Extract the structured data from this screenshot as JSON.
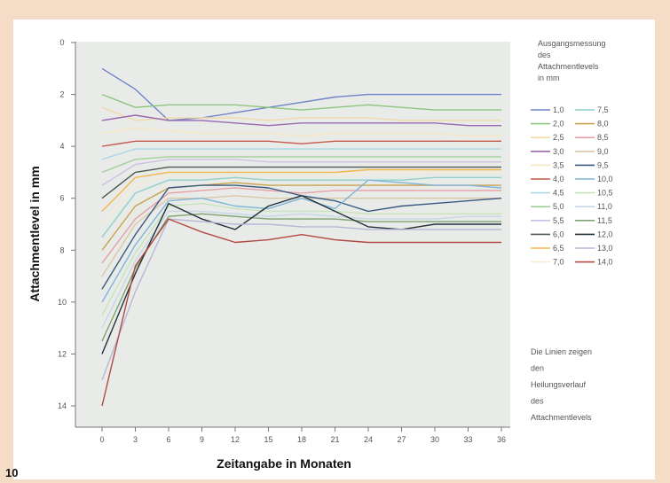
{
  "figure_number": "10",
  "chart_data": {
    "type": "line",
    "xlabel": "Zeitangabe in Monaten",
    "ylabel": "Attachmentlevel in mm",
    "x": [
      0,
      3,
      6,
      9,
      12,
      15,
      18,
      21,
      24,
      27,
      30,
      33,
      36
    ],
    "x_tick_labels": [
      "0",
      "3",
      "6",
      "9",
      "12",
      "15",
      "18",
      "21",
      "24",
      "27",
      "30",
      "33",
      "36"
    ],
    "ylim": [
      0,
      14.3
    ],
    "y_inverted": true,
    "y_ticks": [
      0,
      2,
      4,
      6,
      8,
      10,
      12,
      14
    ],
    "y_tick_labels": [
      "0",
      "2",
      "4",
      "6",
      "8",
      "10",
      "12",
      "14"
    ],
    "grid": false,
    "legend_title": "Ausgangsmessung des Attachmentlevels in mm",
    "legend_placement": "right",
    "annotation": "Die Linien zeigen den Heilungsverlauf des Attachmentlevels",
    "series": [
      {
        "name": "1,0",
        "color": "#6f83c8",
        "values": [
          1.0,
          1.8,
          3.0,
          2.9,
          2.7,
          2.5,
          2.3,
          2.1,
          2.0,
          2.0,
          2.0,
          2.0,
          2.0
        ]
      },
      {
        "name": "2,0",
        "color": "#8cc47e",
        "values": [
          2.0,
          2.5,
          2.4,
          2.4,
          2.4,
          2.5,
          2.6,
          2.5,
          2.4,
          2.5,
          2.6,
          2.6,
          2.6
        ]
      },
      {
        "name": "2,5",
        "color": "#f2d9a6",
        "values": [
          2.5,
          3.0,
          2.9,
          2.9,
          2.9,
          3.0,
          2.9,
          2.9,
          2.9,
          3.0,
          3.0,
          3.0,
          3.0
        ]
      },
      {
        "name": "3,0",
        "color": "#9a68b0",
        "values": [
          3.0,
          2.8,
          3.0,
          3.0,
          3.1,
          3.2,
          3.1,
          3.1,
          3.1,
          3.1,
          3.1,
          3.2,
          3.2
        ]
      },
      {
        "name": "3,5",
        "color": "#f6e6c2",
        "values": [
          3.5,
          3.3,
          3.4,
          3.5,
          3.5,
          3.5,
          3.6,
          3.5,
          3.5,
          3.5,
          3.5,
          3.6,
          3.6
        ]
      },
      {
        "name": "4,0",
        "color": "#c45a4c",
        "values": [
          4.0,
          3.8,
          3.8,
          3.8,
          3.8,
          3.8,
          3.9,
          3.8,
          3.8,
          3.8,
          3.8,
          3.8,
          3.8
        ]
      },
      {
        "name": "4,5",
        "color": "#a9d7e8",
        "values": [
          4.5,
          4.1,
          4.1,
          4.1,
          4.1,
          4.1,
          4.1,
          4.1,
          4.1,
          4.1,
          4.1,
          4.1,
          4.1
        ]
      },
      {
        "name": "5,0",
        "color": "#a2cf9a",
        "values": [
          5.0,
          4.5,
          4.4,
          4.4,
          4.4,
          4.4,
          4.4,
          4.4,
          4.4,
          4.4,
          4.4,
          4.4,
          4.4
        ]
      },
      {
        "name": "5,5",
        "color": "#cdbfe3",
        "values": [
          5.5,
          4.7,
          4.5,
          4.5,
          4.5,
          4.6,
          4.6,
          4.6,
          4.6,
          4.6,
          4.6,
          4.6,
          4.6
        ]
      },
      {
        "name": "6,0",
        "color": "#4e5a54",
        "values": [
          6.0,
          5.0,
          4.8,
          4.8,
          4.8,
          4.8,
          4.8,
          4.8,
          4.8,
          4.8,
          4.8,
          4.8,
          4.8
        ]
      },
      {
        "name": "6,5",
        "color": "#f2b84a",
        "values": [
          6.5,
          5.2,
          5.0,
          5.0,
          5.0,
          5.0,
          5.0,
          5.0,
          4.9,
          4.9,
          4.9,
          4.9,
          4.9
        ]
      },
      {
        "name": "7,0",
        "color": "#f7ecd2",
        "values": [
          7.0,
          5.5,
          5.1,
          5.1,
          5.1,
          5.1,
          5.1,
          5.1,
          5.0,
          5.0,
          5.0,
          5.0,
          5.0
        ]
      },
      {
        "name": "7,5",
        "color": "#8fd0c8",
        "values": [
          7.5,
          5.8,
          5.3,
          5.3,
          5.2,
          5.3,
          5.3,
          5.3,
          5.3,
          5.3,
          5.2,
          5.2,
          5.2
        ]
      },
      {
        "name": "8,0",
        "color": "#c9a24a",
        "values": [
          8.0,
          6.3,
          5.6,
          5.5,
          5.4,
          5.5,
          5.5,
          5.5,
          5.5,
          5.5,
          5.5,
          5.5,
          5.5
        ]
      },
      {
        "name": "8,5",
        "color": "#e6a0a6",
        "values": [
          8.5,
          6.8,
          5.8,
          5.7,
          5.6,
          5.7,
          5.8,
          5.7,
          5.7,
          5.7,
          5.7,
          5.7,
          5.7
        ]
      },
      {
        "name": "9,0",
        "color": "#d9c7a7",
        "values": [
          9.0,
          7.0,
          6.0,
          6.0,
          5.9,
          6.0,
          6.0,
          6.0,
          6.0,
          6.0,
          6.0,
          6.0,
          6.0
        ]
      },
      {
        "name": "9,5",
        "color": "#3b5a82",
        "values": [
          9.5,
          7.4,
          5.6,
          5.5,
          5.5,
          5.6,
          5.9,
          6.1,
          6.5,
          6.3,
          6.2,
          6.1,
          6.0
        ]
      },
      {
        "name": "10,0",
        "color": "#7fb6d8",
        "values": [
          10.0,
          7.8,
          6.1,
          6.0,
          6.3,
          6.4,
          6.0,
          6.4,
          5.3,
          5.4,
          5.5,
          5.5,
          5.6
        ]
      },
      {
        "name": "10,5",
        "color": "#c6e4ba",
        "values": [
          10.5,
          8.1,
          6.3,
          6.2,
          6.4,
          6.5,
          6.5,
          6.5,
          6.6,
          6.6,
          6.6,
          6.6,
          6.6
        ]
      },
      {
        "name": "11,0",
        "color": "#c7d6e8",
        "values": [
          11.0,
          8.4,
          6.5,
          6.5,
          6.6,
          6.7,
          6.6,
          6.7,
          6.8,
          6.8,
          6.8,
          6.7,
          6.7
        ]
      },
      {
        "name": "11,5",
        "color": "#7fa26f",
        "values": [
          11.5,
          8.7,
          6.7,
          6.6,
          6.7,
          6.8,
          6.8,
          6.8,
          6.9,
          6.9,
          6.9,
          6.9,
          6.9
        ]
      },
      {
        "name": "12,0",
        "color": "#22303a",
        "values": [
          12.0,
          8.9,
          6.2,
          6.8,
          7.2,
          6.3,
          5.9,
          6.5,
          7.1,
          7.2,
          7.0,
          7.0,
          7.0
        ]
      },
      {
        "name": "13,0",
        "color": "#b7b7d6",
        "values": [
          13.0,
          9.6,
          6.8,
          6.9,
          7.0,
          7.0,
          7.1,
          7.1,
          7.2,
          7.2,
          7.2,
          7.2,
          7.2
        ]
      },
      {
        "name": "14,0",
        "color": "#b24a44",
        "values": [
          14.0,
          8.6,
          6.8,
          7.3,
          7.7,
          7.6,
          7.4,
          7.6,
          7.7,
          7.7,
          7.7,
          7.7,
          7.7
        ]
      }
    ]
  }
}
